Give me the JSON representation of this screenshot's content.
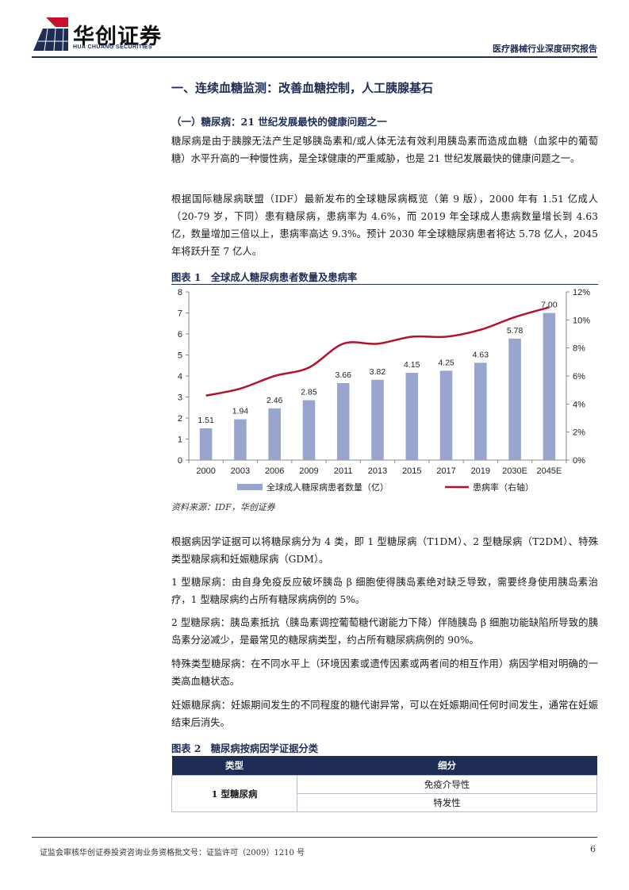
{
  "header": {
    "logo_cn": "华创证券",
    "logo_en": "HUA CHUANG SECURITIES",
    "report_type": "医疗器械行业深度研究报告"
  },
  "section_title": "一、连续血糖监测：改善血糖控制，人工胰腺基石",
  "sub_title": "（一）糖尿病：21 世纪发展最快的健康问题之一",
  "paragraphs": {
    "p1": "糖尿病是由于胰腺无法产生足够胰岛素和/或人体无法有效利用胰岛素而造成血糖（血浆中的葡萄糖）水平升高的一种慢性病，是全球健康的严重威胁，也是 21 世纪发展最快的健康问题之一。",
    "p2": "根据国际糖尿病联盟（IDF）最新发布的全球糖尿病概览（第 9 版），2000 年有 1.51 亿成人（20-79 岁，下同）患有糖尿病，患病率为 4.6%，而 2019 年全球成人患病数量增长到 4.63 亿，数量增加三倍以上，患病率高达 9.3%。预计 2030 年全球糖尿病患者将达 5.78 亿人，2045 年将跃升至 7 亿人。",
    "p3": "根据病因学证据可以将糖尿病分为 4 类，即 1 型糖尿病（T1DM）、2 型糖尿病（T2DM）、特殊类型糖尿病和妊娠糖尿病（GDM）。",
    "p4": "1 型糖尿病：由自身免疫反应破坏胰岛 β 细胞使得胰岛素绝对缺乏导致，需要终身使用胰岛素治疗，1 型糖尿病约占所有糖尿病病例的 5%。",
    "p5": "2 型糖尿病：胰岛素抵抗（胰岛素调控葡萄糖代谢能力下降）伴随胰岛 β 细胞功能缺陷所导致的胰岛素分泌减少，是最常见的糖尿病类型，约占所有糖尿病病例的 90%。",
    "p6": "特殊类型糖尿病：在不同水平上（环境因素或遗传因素或两者间的相互作用）病因学相对明确的一类高血糖状态。",
    "p7": "妊娠糖尿病：妊娠期间发生的不同程度的糖代谢异常，可以在妊娠期间任何时间发生，通常在妊娠结束后消失。"
  },
  "figure1": {
    "title": "图表 1　全球成人糖尿病患者数量及患病率",
    "source": "资料来源：IDF，华创证券"
  },
  "figure2": {
    "title": "图表 2　糖尿病按病因学证据分类",
    "headers": [
      "类型",
      "细分"
    ],
    "row_label": "1 型糖尿病",
    "sub_items": [
      "免疫介导性",
      "特发性"
    ]
  },
  "chart_data": {
    "type": "bar+line",
    "categories": [
      "2000",
      "2003",
      "2006",
      "2009",
      "2011",
      "2013",
      "2015",
      "2017",
      "2019",
      "2030E",
      "2045E"
    ],
    "series": [
      {
        "name": "全球成人糖尿病患者数量（亿）",
        "type": "bar",
        "axis": "left",
        "color": "#9aa5cf",
        "values": [
          1.51,
          1.94,
          2.46,
          2.85,
          3.66,
          3.82,
          4.15,
          4.25,
          4.63,
          5.78,
          7.0
        ]
      },
      {
        "name": "患病率（右轴）",
        "type": "line",
        "axis": "right",
        "color": "#b4112a",
        "values": [
          4.6,
          5.1,
          6.0,
          6.6,
          8.3,
          8.3,
          8.8,
          8.8,
          9.3,
          10.2,
          10.9
        ]
      }
    ],
    "y_left": {
      "ylim": [
        0,
        8
      ],
      "ticks": [
        "0",
        "1",
        "2",
        "3",
        "4",
        "5",
        "6",
        "7",
        "8"
      ]
    },
    "y_right": {
      "ylim": [
        0,
        12
      ],
      "ticks": [
        "0%",
        "2%",
        "4%",
        "6%",
        "8%",
        "10%",
        "12%"
      ]
    },
    "bar_labels": [
      "1.51",
      "1.94",
      "2.46",
      "2.85",
      "3.66",
      "3.82",
      "4.15",
      "4.25",
      "4.63",
      "5.78",
      "7.00"
    ],
    "legend_position": "bottom",
    "grid": false
  },
  "footer": {
    "license": "证监会审核华创证券投资咨询业务资格批文号：证监许可（2009）1210 号",
    "page": "6"
  }
}
